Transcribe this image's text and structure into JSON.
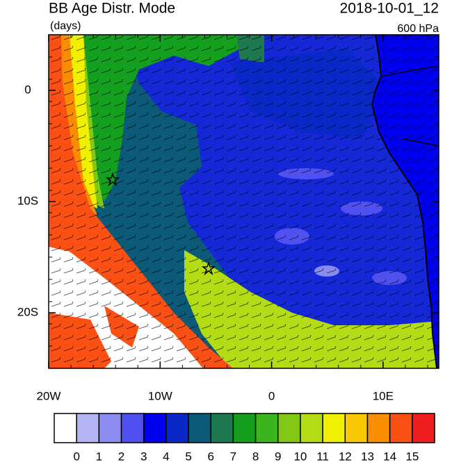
{
  "title": "BB Age Distr. Mode",
  "units": "(days)",
  "date": "2018-10-01_12",
  "level": "600 hPa",
  "lon_range": [
    -20,
    15
  ],
  "lat_range": [
    -25,
    5
  ],
  "x_ticks": [
    {
      "value": -20,
      "label": "20W"
    },
    {
      "value": -10,
      "label": "10W"
    },
    0,
    {
      "value": 10,
      "label": "10E"
    }
  ],
  "y_ticks": [
    0,
    {
      "value": -10,
      "label": "10S"
    },
    {
      "value": -20,
      "label": "20S"
    }
  ],
  "colorbar": {
    "levels": [
      0,
      1,
      2,
      3,
      4,
      5,
      6,
      7,
      8,
      9,
      10,
      11,
      12,
      13,
      14,
      15
    ],
    "colors": [
      "#ffffff",
      "#b4b4f5",
      "#8c8cf0",
      "#5050f0",
      "#0000f0",
      "#0a28c8",
      "#0a5a78",
      "#1e7850",
      "#14a01e",
      "#3cb41e",
      "#82c814",
      "#b4dc14",
      "#f0f000",
      "#fac800",
      "#fa8c00",
      "#fa5014",
      "#f01e1e"
    ]
  }
}
